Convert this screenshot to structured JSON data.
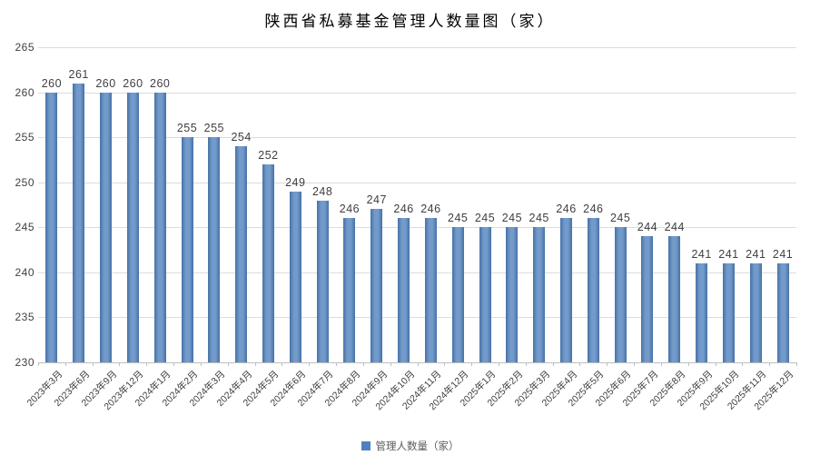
{
  "title": "陕西省私募基金管理人数量图（家）",
  "legend": {
    "label": "管理人数量（家）",
    "color": "#4f81bd"
  },
  "chart_data": {
    "type": "bar",
    "title": "陕西省私募基金管理人数量图（家）",
    "series_name": "管理人数量（家）",
    "categories": [
      "2023年3月",
      "2023年6月",
      "2023年9月",
      "2023年12月",
      "2024年1月",
      "2024年2月",
      "2024年3月",
      "2024年4月",
      "2024年5月",
      "2024年6月",
      "2024年7月",
      "2024年8月",
      "2024年9月",
      "2024年10月",
      "2024年11月",
      "2024年12月",
      "2025年1月",
      "2025年2月",
      "2025年3月",
      "2025年4月",
      "2025年5月",
      "2025年6月",
      "2025年7月",
      "2025年8月",
      "2025年9月",
      "2025年10月",
      "2025年11月",
      "2025年12月"
    ],
    "values": [
      260,
      261,
      260,
      260,
      260,
      255,
      255,
      254,
      252,
      249,
      248,
      246,
      247,
      246,
      246,
      245,
      245,
      245,
      245,
      246,
      246,
      245,
      244,
      244,
      241,
      241,
      241,
      241
    ],
    "ylim": [
      230,
      265
    ],
    "yticks": [
      230,
      235,
      240,
      245,
      250,
      255,
      260,
      265
    ],
    "bar_color": "#4f81bd",
    "grid": true,
    "data_labels": true,
    "legend_position": "bottom",
    "xlabel": "",
    "ylabel": ""
  }
}
